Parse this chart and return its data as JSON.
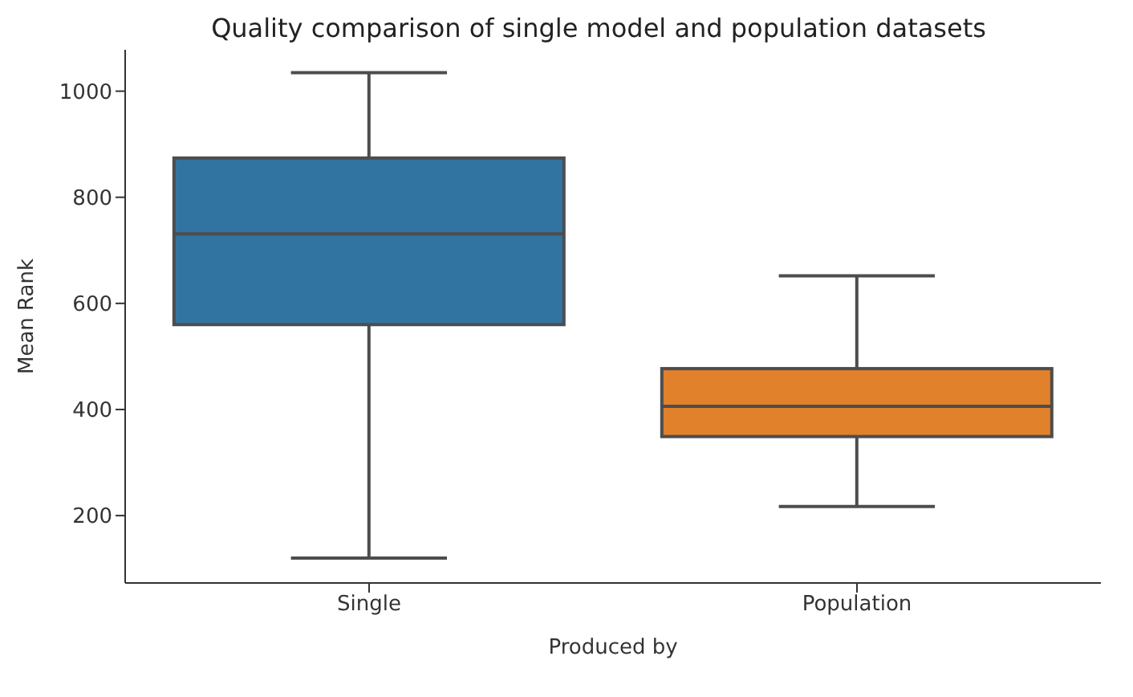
{
  "chart_data": {
    "type": "box",
    "title": "Quality comparison of single model and population datasets",
    "xlabel": "Produced by",
    "ylabel": "Mean Rank",
    "categories": [
      "Single",
      "Population"
    ],
    "colors": [
      "#3274a1",
      "#e1812c"
    ],
    "boxes": [
      {
        "low": 120,
        "q1": 560,
        "median": 731,
        "q3": 874,
        "high": 1035
      },
      {
        "low": 217,
        "q1": 349,
        "median": 406,
        "q3": 477,
        "high": 652
      }
    ],
    "ylim": [
      73,
      1078
    ],
    "yticks": [
      200,
      400,
      600,
      800,
      1000
    ]
  }
}
